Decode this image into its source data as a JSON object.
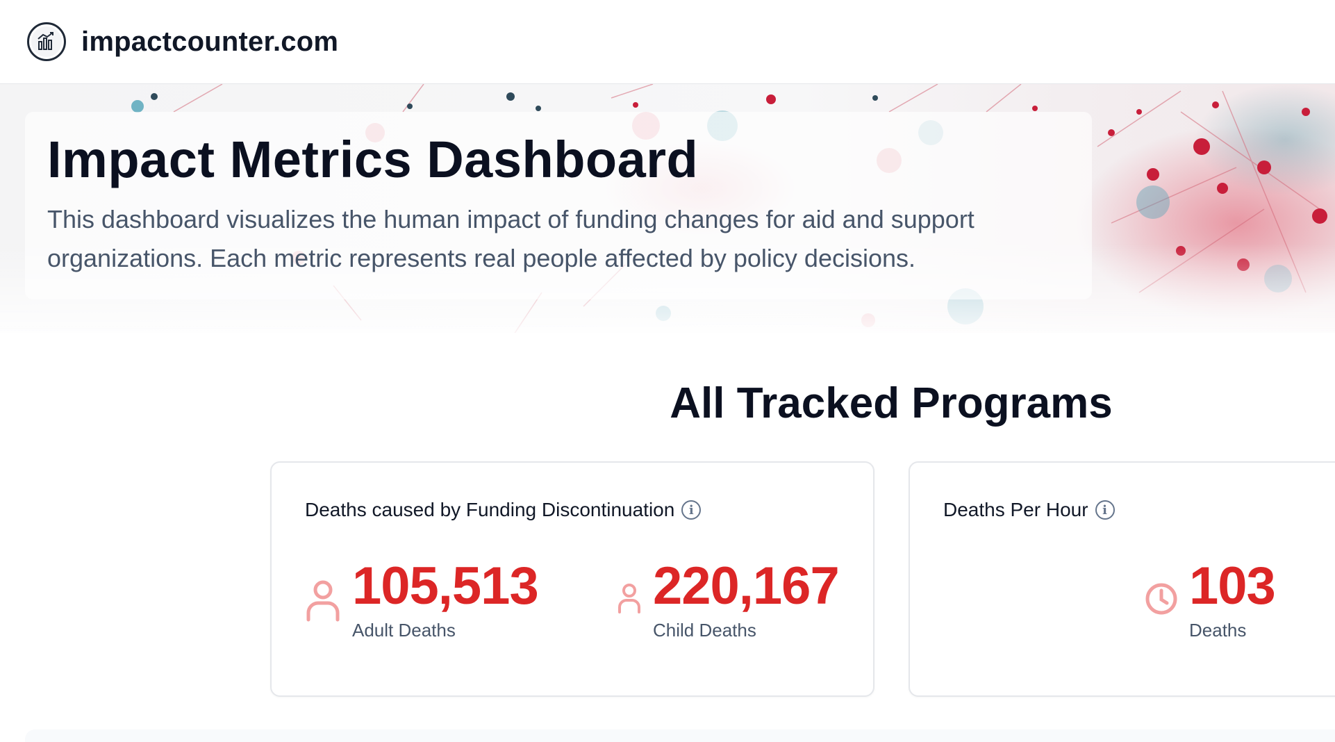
{
  "header": {
    "site_name": "impactcounter.com",
    "logo_icon": "chart-logo-icon"
  },
  "hero": {
    "title": "Impact Metrics Dashboard",
    "description": "This dashboard visualizes the human impact of funding changes for aid and support organizations. Each metric represents real people affected by policy decisions."
  },
  "section": {
    "title": "All Tracked Programs"
  },
  "cards": [
    {
      "title": "Deaths caused by Funding Discontinuation",
      "metrics": [
        {
          "value": "105,513",
          "label": "Adult Deaths",
          "icon": "person-icon"
        },
        {
          "value": "220,167",
          "label": "Child Deaths",
          "icon": "child-icon"
        }
      ]
    },
    {
      "title": "Deaths Per Hour",
      "metrics": [
        {
          "value": "103",
          "label": "Deaths",
          "icon": "clock-icon"
        }
      ]
    }
  ],
  "colors": {
    "accent_red": "#dc2626",
    "icon_pink": "#f2a0a0",
    "text_dark": "#0b1020",
    "text_muted": "#475569"
  }
}
